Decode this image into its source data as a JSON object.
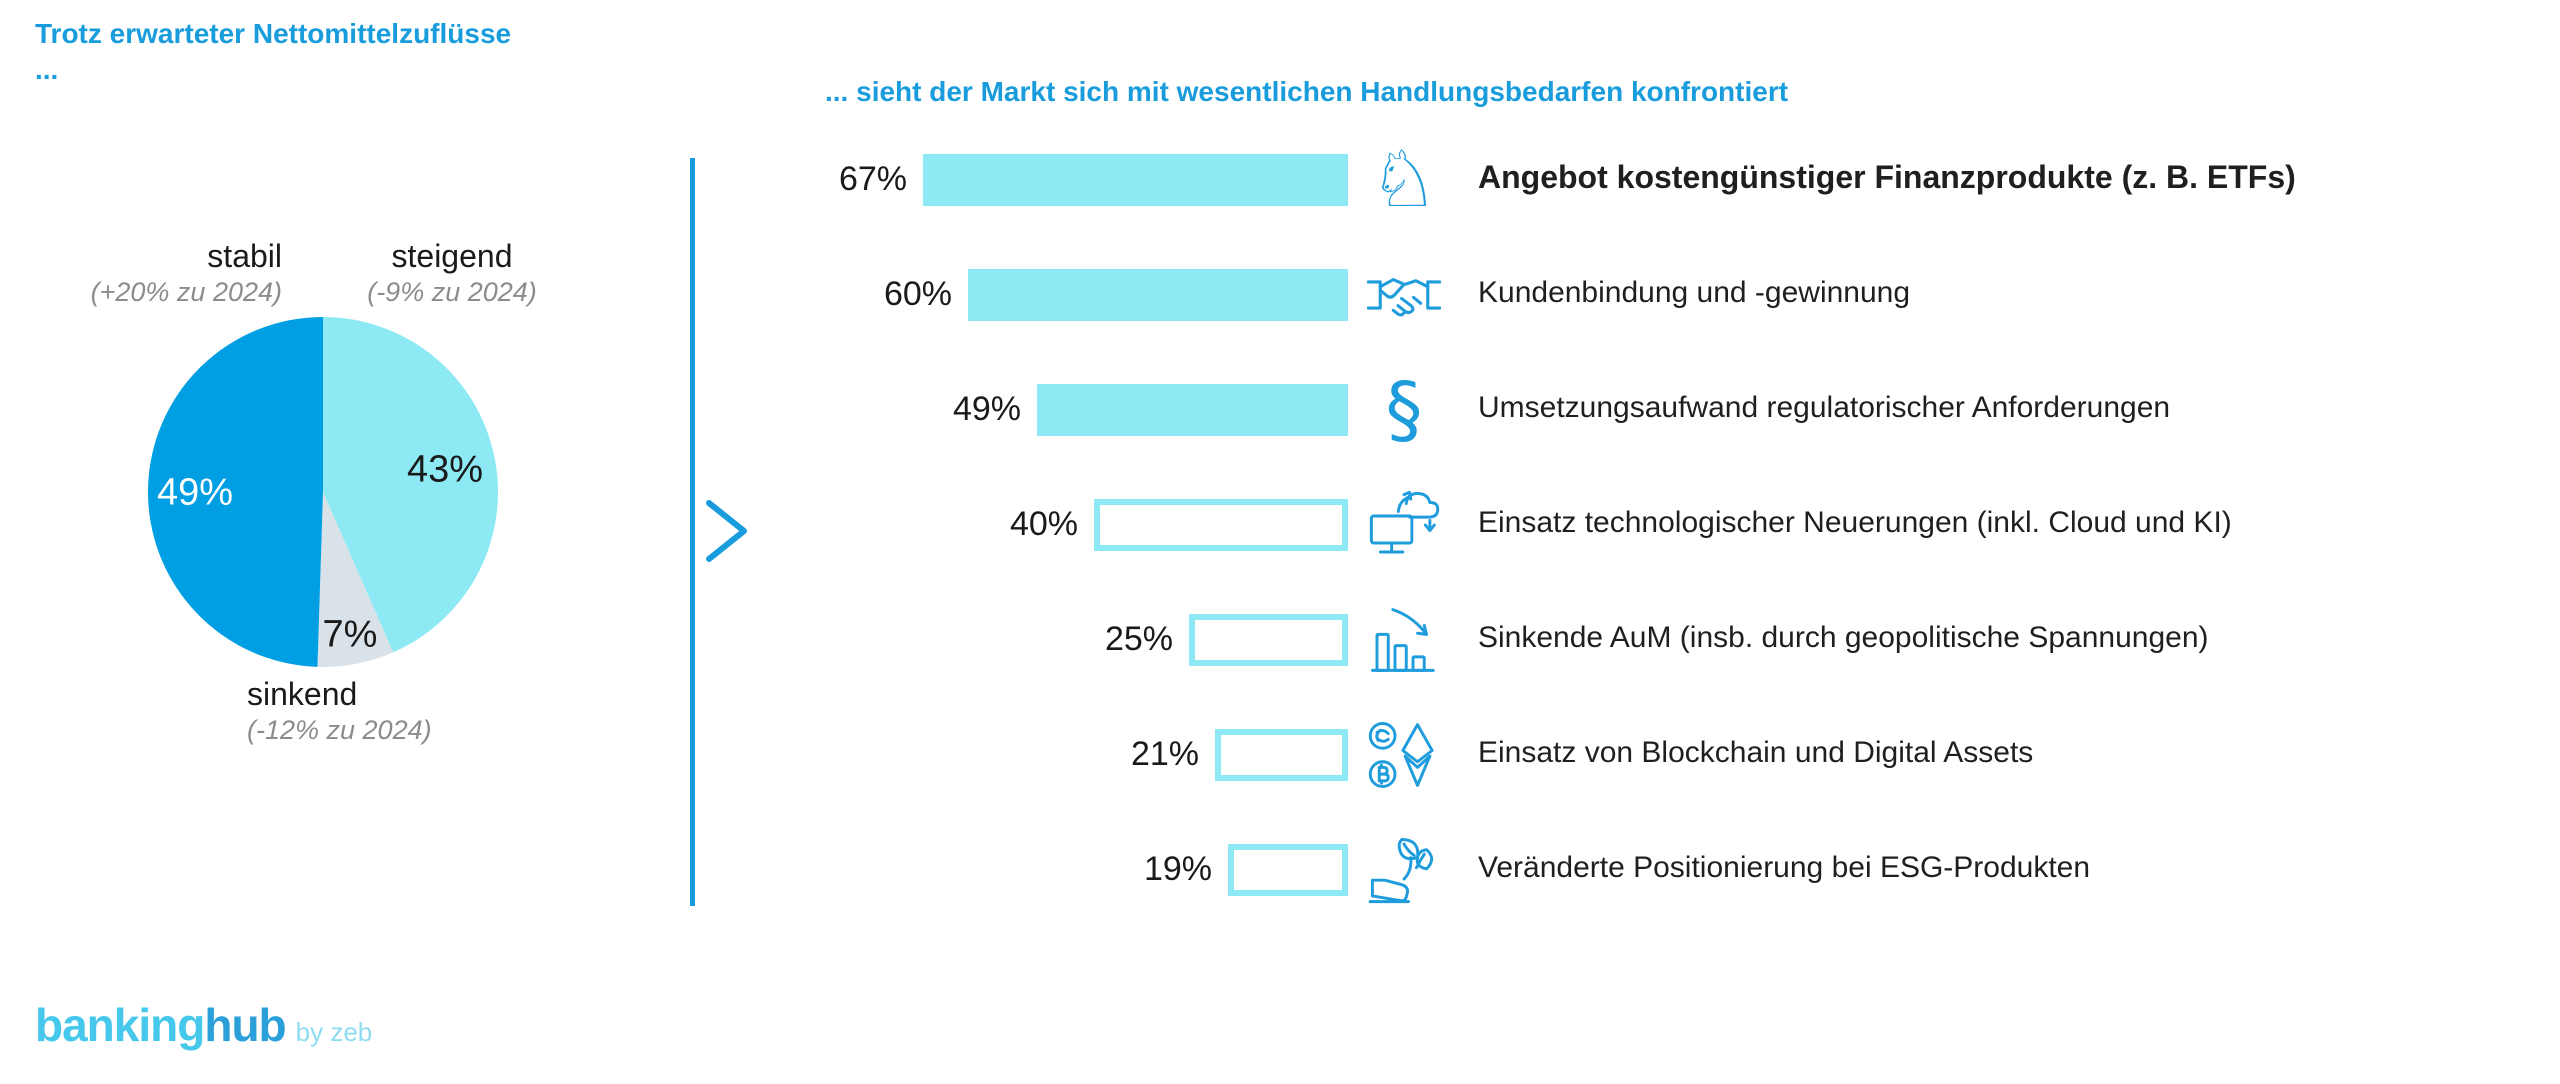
{
  "titles": {
    "left_line1": "Trotz erwarteter Nettomittelzuflüsse",
    "left_line2": "...",
    "right": "... sieht der Markt sich mit wesentlichen Handlungsbedarfen konfrontiert"
  },
  "colors": {
    "accent": "#189cdc",
    "pie_blue": "#009fe3",
    "cyan": "#8de9f4",
    "slice_gray": "#d9e2e8",
    "sublabel": "#8c8c8c",
    "icon": "#1e9cdc",
    "logo_light": "#45c8ec",
    "logo_blue": "#2b9fd9",
    "logo_suffix": "#8fdcf2"
  },
  "logo": {
    "part1": "banking",
    "part2": "hub",
    "suffix": "by zeb"
  },
  "chart_data": [
    {
      "type": "pie",
      "title": "Trotz erwarteter Nettomittelzuflüsse ...",
      "start_angle_deg": 0,
      "direction": "clockwise",
      "slices": [
        {
          "label": "steigend",
          "sublabel": "(-9% zu 2024)",
          "value": 43,
          "color": "#8de9f4"
        },
        {
          "label": "sinkend",
          "sublabel": "(-12% zu 2024)",
          "value": 7,
          "color": "#d9e2e8"
        },
        {
          "label": "stabil",
          "sublabel": "(+20% zu 2024)",
          "value": 49,
          "color": "#009fe3"
        }
      ]
    },
    {
      "type": "bar",
      "title": "... sieht der Markt sich mit wesentlichen Handlungsbedarfen konfrontiert",
      "orientation": "horizontal",
      "alignment": "right-aligned bars, value labels left of bar",
      "unit": "%",
      "xlim": [
        0,
        100
      ],
      "rows": [
        {
          "value": 67,
          "label": "Angebot kostengünstiger Finanzprodukte (z. B. ETFs)",
          "icon": "chess-knight-icon",
          "filled": true,
          "emphasis": true
        },
        {
          "value": 60,
          "label": "Kundenbindung und -gewinnung",
          "icon": "handshake-icon",
          "filled": true,
          "emphasis": false
        },
        {
          "value": 49,
          "label": "Umsetzungsaufwand regulatorischer Anforderungen",
          "icon": "paragraph-icon",
          "filled": true,
          "emphasis": false
        },
        {
          "value": 40,
          "label": "Einsatz technologischer Neuerungen (inkl. Cloud und KI)",
          "icon": "cloud-computing-icon",
          "filled": false,
          "emphasis": false
        },
        {
          "value": 25,
          "label": "Sinkende AuM (insb. durch geopolitische Spannungen)",
          "icon": "declining-chart-icon",
          "filled": false,
          "emphasis": false
        },
        {
          "value": 21,
          "label": "Einsatz von Blockchain und Digital Assets",
          "icon": "crypto-assets-icon",
          "filled": false,
          "emphasis": false
        },
        {
          "value": 19,
          "label": "Veränderte Positionierung bei ESG-Produkten",
          "icon": "esg-leaf-icon",
          "filled": false,
          "emphasis": false
        }
      ]
    }
  ]
}
